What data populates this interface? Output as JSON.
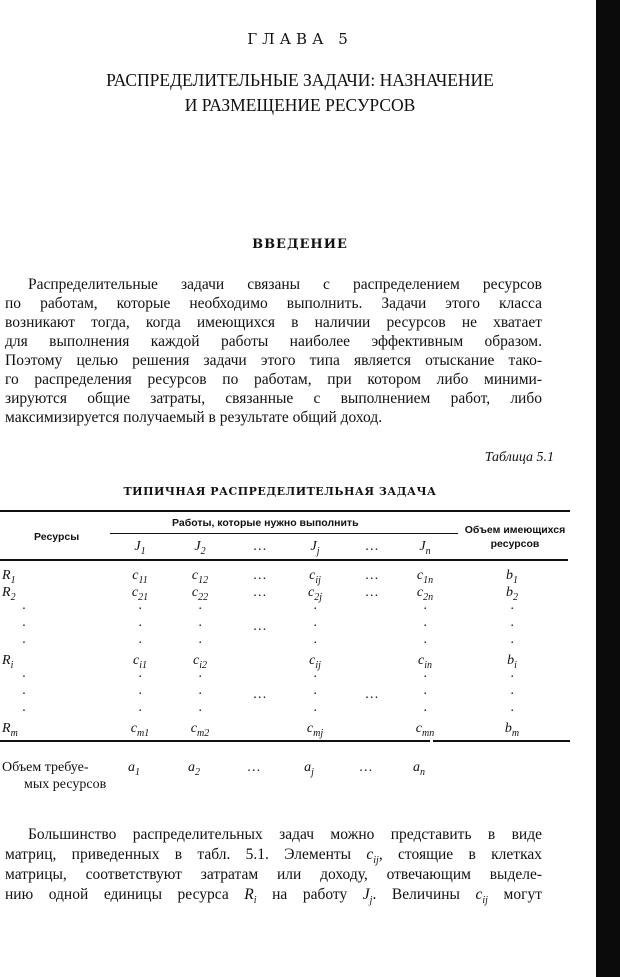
{
  "chapter": "ГЛАВА 5",
  "title_lines": [
    "РАСПРЕДЕЛИТЕЛЬНЫЕ ЗАДАЧИ: НАЗНАЧЕНИЕ",
    "И РАЗМЕЩЕНИЕ РЕСУРСОВ"
  ],
  "section": "ВВЕДЕНИЕ",
  "paragraph1": [
    "Распределительные задачи связаны с распределением ресурсов",
    "по работам, которые необходимо выполнить. Задачи этого класса",
    "возникают тогда, когда имеющихся в наличии ресурсов не хватает",
    "для выполнения каждой работы наиболее эффективным образом.",
    "Поэтому целью решения задачи этого типа является отыскание тако-",
    "го распределения ресурсов по работам, при котором либо миними-",
    "зируются общие затраты, связанные с выполнением работ, либо",
    "максимизируется получаемый в результате общий доход."
  ],
  "table": {
    "caption": "Таблица 5.1",
    "title": "ТИПИЧНАЯ РАСПРЕДЕЛИТЕЛЬНАЯ ЗАДАЧА",
    "header_resources": "Ресурсы",
    "header_jobs": "Работы, которые нужно выполнить",
    "header_available": [
      "Объем имеющихся",
      "ресурсов"
    ],
    "job_columns": [
      [
        "J",
        "1"
      ],
      [
        "J",
        "2"
      ],
      [
        "…",
        ""
      ],
      [
        "J",
        "j"
      ],
      [
        "…",
        ""
      ],
      [
        "J",
        "n"
      ]
    ],
    "rows": [
      {
        "label": [
          "R",
          "1"
        ],
        "cells": [
          [
            "c",
            "11"
          ],
          [
            "c",
            "12"
          ],
          [
            "…",
            ""
          ],
          [
            "c",
            "ij"
          ],
          [
            "…",
            ""
          ],
          [
            "c",
            "1n"
          ]
        ],
        "avail": [
          "b",
          "1"
        ]
      },
      {
        "label": [
          "R",
          "2"
        ],
        "cells": [
          [
            "c",
            "21"
          ],
          [
            "c",
            "22"
          ],
          [
            "…",
            ""
          ],
          [
            "c",
            "2j"
          ],
          [
            "…",
            ""
          ],
          [
            "c",
            "2n"
          ]
        ],
        "avail": [
          "b",
          "2"
        ]
      },
      {
        "label": [
          "·",
          ""
        ],
        "cells": [
          [
            "·",
            ""
          ],
          [
            "·",
            ""
          ],
          [
            "",
            ""
          ],
          [
            "·",
            ""
          ],
          [
            "",
            ""
          ],
          [
            "·",
            ""
          ]
        ],
        "avail": [
          "·",
          ""
        ]
      },
      {
        "label": [
          "·",
          ""
        ],
        "cells": [
          [
            "·",
            ""
          ],
          [
            "·",
            ""
          ],
          [
            "…",
            ""
          ],
          [
            "·",
            ""
          ],
          [
            "",
            ""
          ],
          [
            "·",
            ""
          ]
        ],
        "avail": [
          "·",
          ""
        ]
      },
      {
        "label": [
          "·",
          ""
        ],
        "cells": [
          [
            "·",
            ""
          ],
          [
            "·",
            ""
          ],
          [
            "",
            ""
          ],
          [
            "·",
            ""
          ],
          [
            "",
            ""
          ],
          [
            "·",
            ""
          ]
        ],
        "avail": [
          "·",
          ""
        ]
      },
      {
        "label": [
          "R",
          "i"
        ],
        "cells": [
          [
            "c",
            "i1"
          ],
          [
            "c",
            "i2"
          ],
          [
            "",
            ""
          ],
          [
            "c",
            "ij"
          ],
          [
            "",
            ""
          ],
          [
            "c",
            "in"
          ]
        ],
        "avail": [
          "b",
          "i"
        ]
      },
      {
        "label": [
          "·",
          ""
        ],
        "cells": [
          [
            "·",
            ""
          ],
          [
            "·",
            ""
          ],
          [
            "",
            ""
          ],
          [
            "·",
            ""
          ],
          [
            "",
            ""
          ],
          [
            "·",
            ""
          ]
        ],
        "avail": [
          "·",
          ""
        ]
      },
      {
        "label": [
          "·",
          ""
        ],
        "cells": [
          [
            "·",
            ""
          ],
          [
            "·",
            ""
          ],
          [
            "…",
            ""
          ],
          [
            "·",
            ""
          ],
          [
            "…",
            ""
          ],
          [
            "·",
            ""
          ]
        ],
        "avail": [
          "·",
          ""
        ]
      },
      {
        "label": [
          "·",
          ""
        ],
        "cells": [
          [
            "·",
            ""
          ],
          [
            "·",
            ""
          ],
          [
            "",
            ""
          ],
          [
            "·",
            ""
          ],
          [
            "",
            ""
          ],
          [
            "·",
            ""
          ]
        ],
        "avail": [
          "·",
          ""
        ]
      },
      {
        "label": [
          "R",
          "m"
        ],
        "cells": [
          [
            "c",
            "m1"
          ],
          [
            "c",
            "m2"
          ],
          [
            "",
            ""
          ],
          [
            "c",
            "mj"
          ],
          [
            "",
            ""
          ],
          [
            "c",
            "mn"
          ]
        ],
        "avail": [
          "b",
          "m"
        ]
      }
    ],
    "footer_label": [
      "Объем требуе-",
      "мых ресурсов"
    ],
    "footer_cells": [
      [
        "a",
        "1"
      ],
      [
        "a",
        "2"
      ],
      [
        "…",
        ""
      ],
      [
        "a",
        "j"
      ],
      [
        "…",
        ""
      ],
      [
        "a",
        "n"
      ]
    ]
  },
  "paragraph2": {
    "l1": "Большинство распределительных задач можно представить в виде",
    "l2a": "матриц, приведенных в табл. 5.1. Элементы ",
    "l2b": ", стоящие в клетках",
    "l3": "матрицы, соответствуют затратам или доходу, отвечающим выделе-",
    "l4a": "нию одной единицы ресурса ",
    "l4b": " на работу ",
    "l4c": ". Величины ",
    "l4d": " могут",
    "sym_c": "c",
    "sym_ij": "ij",
    "sym_R": "R",
    "sym_i": "i",
    "sym_J": "J",
    "sym_j": "j"
  }
}
